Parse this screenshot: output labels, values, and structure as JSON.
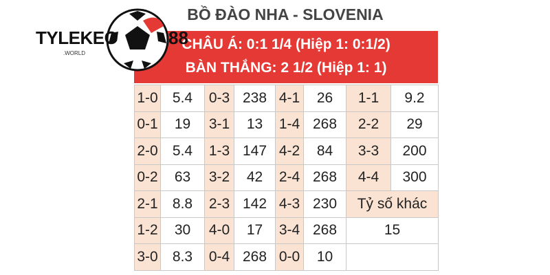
{
  "logo": {
    "name": "TYLEKEO",
    "number": "88",
    "domain": ".WORLD"
  },
  "header": {
    "title": "BỒ ĐÀO NHA - SLOVENIA",
    "lines": [
      "CHÂU Á: 0:1 1/4 (Hiệp 1: 0:1/2)",
      "BÀN THẮNG: 2 1/2 (Hiệp 1: 1)"
    ]
  },
  "table": {
    "rows": [
      [
        "1-0",
        5.4,
        "0-3",
        238,
        "4-1",
        26,
        "1-1",
        9.2
      ],
      [
        "0-1",
        19,
        "3-1",
        13,
        "1-4",
        268,
        "2-2",
        29
      ],
      [
        "2-0",
        5.4,
        "1-3",
        147,
        "4-2",
        84,
        "3-3",
        200
      ],
      [
        "0-2",
        63,
        "3-2",
        42,
        "2-4",
        268,
        "4-4",
        300
      ],
      [
        "2-1",
        8.8,
        "2-3",
        142,
        "4-3",
        230
      ],
      [
        "1-2",
        30,
        "4-0",
        17,
        "3-4",
        268
      ],
      [
        "3-0",
        8.3,
        "0-4",
        268,
        "0-0",
        10
      ]
    ],
    "other": {
      "label": "Tỷ số khác",
      "value": 15
    }
  }
}
